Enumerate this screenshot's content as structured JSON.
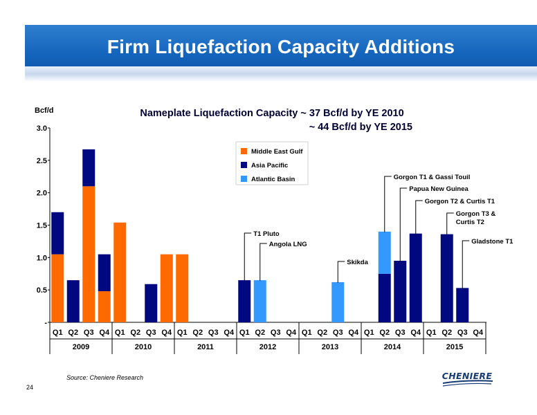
{
  "slide": {
    "title": "Firm Liquefaction Capacity Additions",
    "source": "Source: Cheniere Research",
    "page_number": "24",
    "logo_text": "CHENIERE"
  },
  "chart_data": {
    "type": "bar",
    "stacked": true,
    "title_line1": "Nameplate Liquefaction Capacity ~ 37 Bcf/d by YE 2010",
    "title_line2": "~ 44 Bcf/d by YE 2015",
    "ylabel": "Bcf/d",
    "ylim": [
      0,
      3.0
    ],
    "yticks": [
      "-",
      "0.5",
      "1.0",
      "1.5",
      "2.0",
      "2.5",
      "3.0"
    ],
    "grid": false,
    "legend_position": "top-center",
    "quarters": [
      "Q1",
      "Q2",
      "Q3",
      "Q4",
      "Q1",
      "Q2",
      "Q3",
      "Q4",
      "Q1",
      "Q2",
      "Q3",
      "Q4",
      "Q1",
      "Q2",
      "Q3",
      "Q4",
      "Q1",
      "Q2",
      "Q3",
      "Q4",
      "Q1",
      "Q2",
      "Q3",
      "Q4",
      "Q1",
      "Q2",
      "Q3",
      "Q4"
    ],
    "years": [
      "2009",
      "2010",
      "2011",
      "2012",
      "2013",
      "2014",
      "2015"
    ],
    "colors": {
      "Middle East Gulf": "#ff6a00",
      "Asia Pacific": "#00087f",
      "Atlantic Basin": "#3399ff"
    },
    "series": [
      {
        "name": "Middle East Gulf",
        "values": [
          1.05,
          0,
          2.1,
          0.48,
          1.54,
          0,
          0,
          1.05,
          1.05,
          0,
          0,
          0,
          0,
          0,
          0,
          0,
          0,
          0,
          0,
          0,
          0,
          0,
          0,
          0,
          0,
          0,
          0,
          0
        ]
      },
      {
        "name": "Asia Pacific",
        "values": [
          0.65,
          0.65,
          0.57,
          0.57,
          0,
          0,
          0.59,
          0,
          0,
          0,
          0,
          0,
          0.65,
          0,
          0,
          0,
          0,
          0,
          0,
          0,
          0,
          0.75,
          0.95,
          1.37,
          0,
          1.36,
          0.53,
          0
        ]
      },
      {
        "name": "Atlantic Basin",
        "values": [
          0,
          0,
          0,
          0,
          0,
          0,
          0,
          0,
          0,
          0,
          0,
          0,
          0,
          0.65,
          0,
          0,
          0,
          0,
          0.62,
          0,
          0,
          0.65,
          0,
          0,
          0,
          0,
          0,
          0
        ]
      }
    ],
    "annotations": [
      {
        "text": "T1 Pluto",
        "index": 12
      },
      {
        "text": "Angola LNG",
        "index": 13
      },
      {
        "text": "Skikda",
        "index": 18
      },
      {
        "text": "Gorgon T1 & Gassi Touil",
        "index": 21
      },
      {
        "text": "Papua New Guinea",
        "index": 22
      },
      {
        "text": "Gorgon T2 & Curtis T1",
        "index": 23
      },
      {
        "text": "Gorgon T3 &",
        "text2": "Curtis T2",
        "index": 25
      },
      {
        "text": "Gladstone T1",
        "index": 26
      }
    ]
  }
}
